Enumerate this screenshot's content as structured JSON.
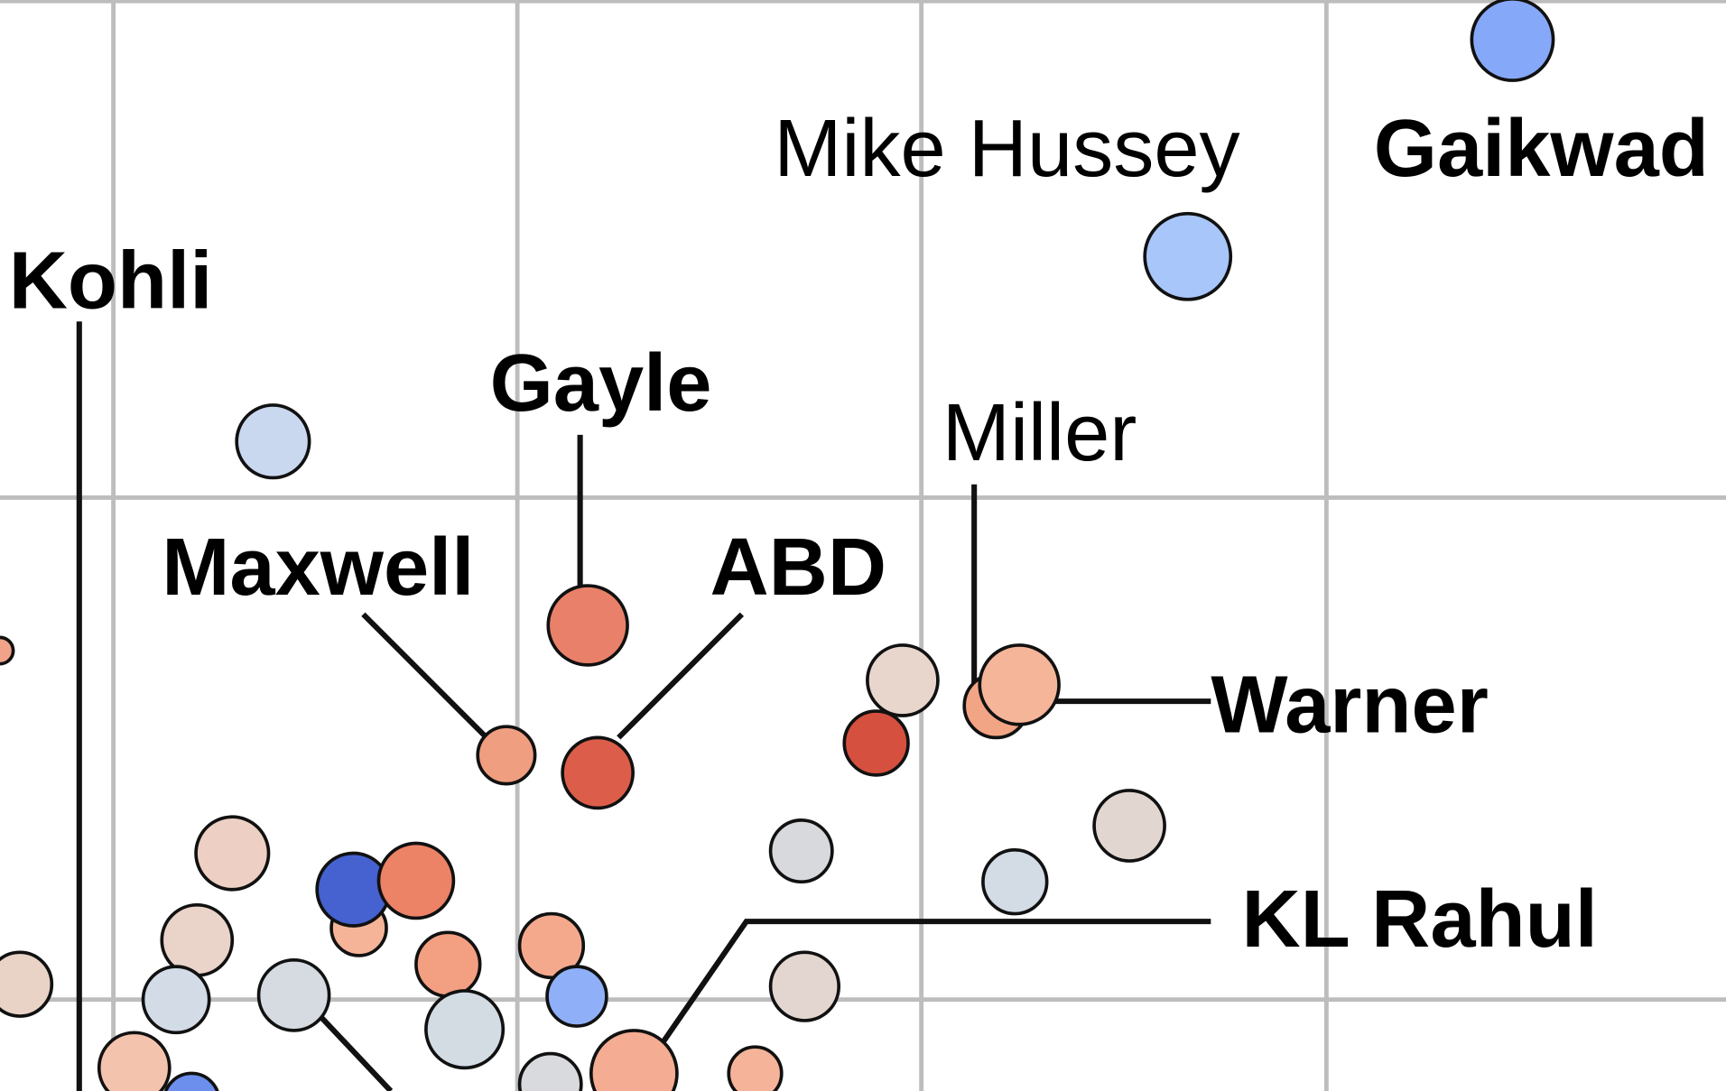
{
  "labels": {
    "hussey": "Mike Hussey",
    "gaikwad": "Gaikwad",
    "kohli": "Kohli",
    "gayle": "Gayle",
    "miller": "Miller",
    "maxwell": "Maxwell",
    "abd": "ABD",
    "warner": "Warner",
    "rahul": "KL Rahul"
  }
}
